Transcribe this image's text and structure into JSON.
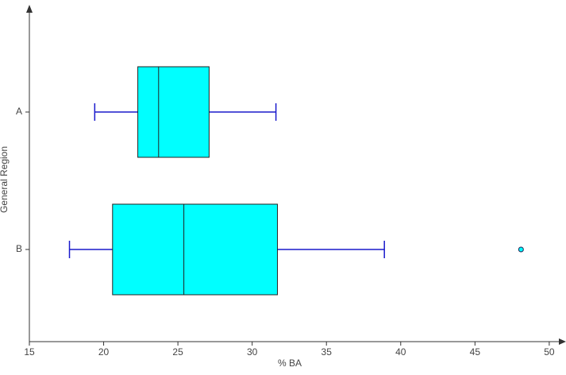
{
  "chart_data": {
    "type": "box",
    "orientation": "horizontal",
    "x_label": "% BA",
    "y_label": "General Region",
    "xlim": [
      15,
      51
    ],
    "xticks": [
      15,
      20,
      25,
      30,
      35,
      40,
      45,
      50
    ],
    "box_color": "#00ffff",
    "whisker_color": "#1a1acc",
    "boxes": [
      {
        "label": "A",
        "min": 19.4,
        "q1": 22.3,
        "median": 23.7,
        "q3": 27.1,
        "max": 31.6
      },
      {
        "label": "B",
        "min": 17.7,
        "q1": 20.6,
        "median": 25.4,
        "q3": 31.7,
        "max": 38.9,
        "outliers": [
          48.1
        ]
      }
    ]
  }
}
